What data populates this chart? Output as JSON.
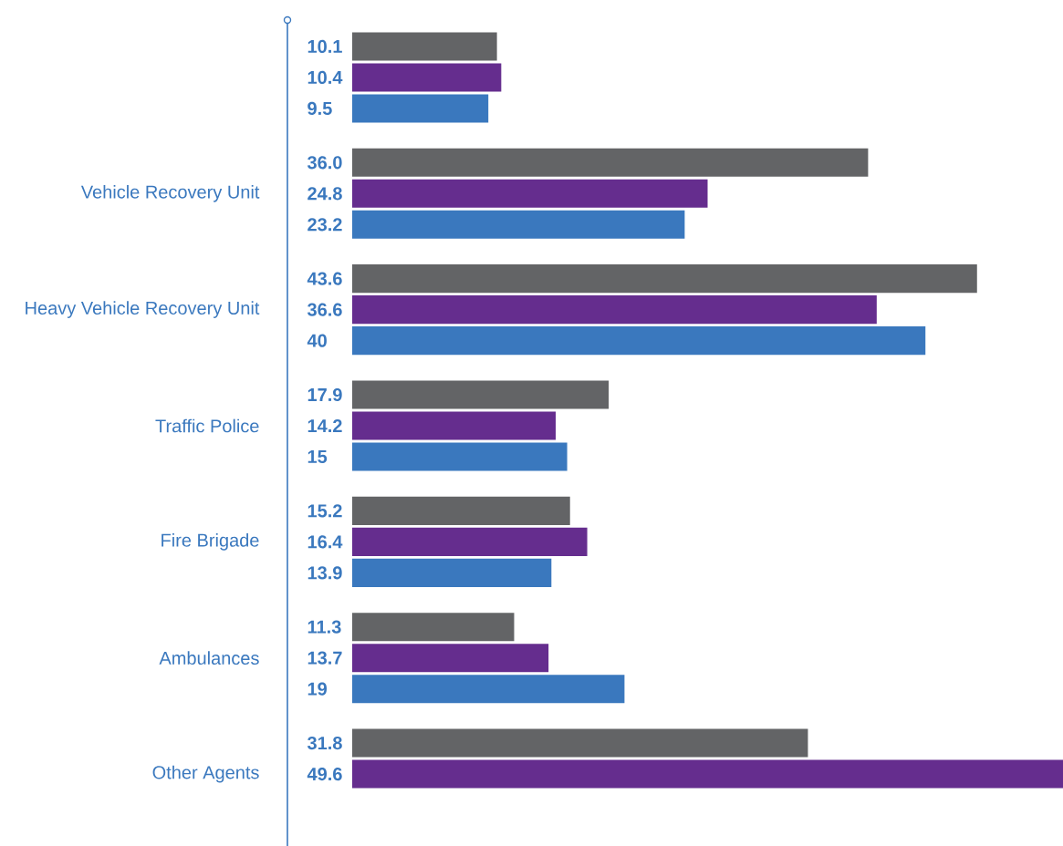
{
  "chart_data": {
    "type": "bar",
    "orientation": "horizontal",
    "categories": [
      null,
      "Vehicle Recovery Unit",
      "Heavy Vehicle Recovery Unit",
      "Traffic Police",
      "Fire Brigade",
      "Ambulances",
      "Other Agents"
    ],
    "series": [
      {
        "color": "#636466",
        "values": [
          10.1,
          36.0,
          43.6,
          17.9,
          15.2,
          11.3,
          31.8
        ],
        "value_labels": [
          "10.1",
          "36.0",
          "43.6",
          "17.9",
          "15.2",
          "11.3",
          "31.8"
        ]
      },
      {
        "color": "#652d8e",
        "values": [
          10.4,
          24.8,
          36.6,
          14.2,
          16.4,
          13.7,
          49.6
        ],
        "value_labels": [
          "10.4",
          "24.8",
          "36.6",
          "14.2",
          "16.4",
          "13.7",
          "49.6"
        ]
      },
      {
        "color": "#3a78be",
        "values": [
          9.5,
          23.2,
          40,
          15,
          13.9,
          19,
          null
        ],
        "value_labels": [
          "9.5",
          "23.2",
          "40",
          "15",
          "13.9",
          "19",
          null
        ]
      }
    ],
    "data_labels": true
  }
}
